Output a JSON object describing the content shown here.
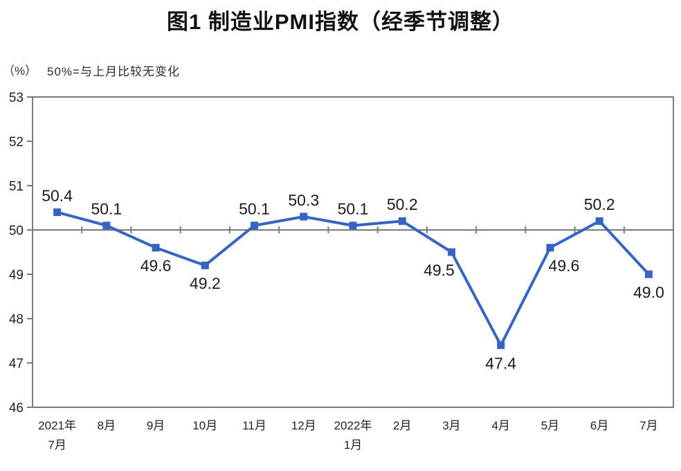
{
  "page": {
    "title": "图1 制造业PMI指数（经季节调整）"
  },
  "chart_data": {
    "type": "line",
    "title": "图1 制造业PMI指数（经季节调整）",
    "ylabel": "（%）",
    "annotation": "50%=与上月比较无变化",
    "xlabel": "",
    "categories": [
      [
        "2021年",
        "7月"
      ],
      [
        "8月"
      ],
      [
        "9月"
      ],
      [
        "10月"
      ],
      [
        "11月"
      ],
      [
        "12月"
      ],
      [
        "2022年",
        "1月"
      ],
      [
        "2月"
      ],
      [
        "3月"
      ],
      [
        "4月"
      ],
      [
        "5月"
      ],
      [
        "6月"
      ],
      [
        "7月"
      ]
    ],
    "series": [
      {
        "name": "制造业PMI",
        "values": [
          50.4,
          50.1,
          49.6,
          49.2,
          50.1,
          50.3,
          50.1,
          50.2,
          49.5,
          47.4,
          49.6,
          50.2,
          49.0
        ]
      }
    ],
    "ylim": [
      46,
      53
    ],
    "ytick_step": 1,
    "reference_line": 50,
    "grid": false,
    "legend": "none",
    "label_dx": [
      0,
      0,
      0,
      0,
      0,
      0,
      0,
      0,
      -18,
      0,
      20,
      0,
      0
    ],
    "line_color": "#3564C4",
    "axis_color": "#7A7A7A",
    "tick_text_color": "#222222",
    "label_color": "#1C1C1C"
  }
}
